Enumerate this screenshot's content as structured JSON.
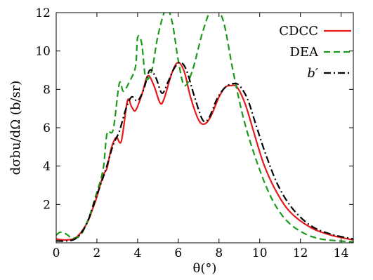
{
  "chart_data": {
    "type": "line",
    "xlabel": "θ(°)",
    "ylabel": "dσbu/dΩ (b/sr)",
    "xlim": [
      0,
      14.6
    ],
    "ylim": [
      0,
      12
    ],
    "x_ticks": [
      0,
      2,
      4,
      6,
      8,
      10,
      12,
      14
    ],
    "y_ticks": [
      2,
      4,
      6,
      8,
      10,
      12
    ],
    "grid": false,
    "legend_position": "top-right",
    "series": [
      {
        "name": "CDCC",
        "color": "#e41a1c",
        "style": "solid",
        "points": [
          [
            0,
            0.2
          ],
          [
            0.5,
            0.15
          ],
          [
            1.0,
            0.3
          ],
          [
            1.5,
            1.0
          ],
          [
            1.8,
            1.8
          ],
          [
            2.0,
            2.4
          ],
          [
            2.3,
            3.5
          ],
          [
            2.5,
            3.9
          ],
          [
            2.7,
            4.9
          ],
          [
            2.95,
            5.5
          ],
          [
            3.2,
            5.3
          ],
          [
            3.5,
            7.4
          ],
          [
            3.7,
            7.1
          ],
          [
            3.9,
            6.9
          ],
          [
            4.2,
            7.7
          ],
          [
            4.5,
            8.7
          ],
          [
            4.8,
            8.2
          ],
          [
            5.1,
            7.3
          ],
          [
            5.3,
            7.5
          ],
          [
            5.7,
            8.9
          ],
          [
            6.0,
            9.4
          ],
          [
            6.3,
            8.9
          ],
          [
            6.6,
            7.6
          ],
          [
            7.0,
            6.4
          ],
          [
            7.3,
            6.2
          ],
          [
            7.6,
            6.6
          ],
          [
            8.0,
            7.6
          ],
          [
            8.3,
            8.1
          ],
          [
            8.6,
            8.2
          ],
          [
            8.9,
            8.1
          ],
          [
            9.3,
            7.2
          ],
          [
            9.7,
            5.8
          ],
          [
            10.2,
            4.1
          ],
          [
            10.8,
            2.7
          ],
          [
            11.5,
            1.6
          ],
          [
            12.5,
            0.8
          ],
          [
            13.5,
            0.4
          ],
          [
            14.6,
            0.15
          ]
        ]
      },
      {
        "name": "DEA",
        "color": "#1a9a1a",
        "style": "dashed",
        "points": [
          [
            0,
            0.4
          ],
          [
            0.2,
            0.55
          ],
          [
            0.5,
            0.45
          ],
          [
            0.8,
            0.25
          ],
          [
            1.2,
            0.4
          ],
          [
            1.6,
            1.3
          ],
          [
            1.9,
            2.3
          ],
          [
            2.3,
            3.8
          ],
          [
            2.5,
            5.7
          ],
          [
            2.8,
            5.9
          ],
          [
            3.1,
            8.3
          ],
          [
            3.3,
            7.9
          ],
          [
            3.6,
            8.4
          ],
          [
            3.9,
            9.2
          ],
          [
            4.0,
            10.7
          ],
          [
            4.2,
            10.4
          ],
          [
            4.4,
            8.6
          ],
          [
            4.7,
            9.0
          ],
          [
            5.0,
            10.8
          ],
          [
            5.4,
            12.2
          ],
          [
            5.7,
            11.5
          ],
          [
            6.0,
            9.5
          ],
          [
            6.3,
            8.2
          ],
          [
            6.7,
            9.0
          ],
          [
            7.2,
            11.0
          ],
          [
            7.7,
            12.3
          ],
          [
            8.2,
            11.6
          ],
          [
            8.7,
            8.9
          ],
          [
            9.2,
            6.5
          ],
          [
            9.8,
            4.4
          ],
          [
            10.5,
            2.5
          ],
          [
            11.2,
            1.3
          ],
          [
            12.0,
            0.6
          ],
          [
            13.0,
            0.2
          ],
          [
            14.6,
            0.05
          ]
        ]
      },
      {
        "name": "b′",
        "color": "#000000",
        "style": "dashdot",
        "points": [
          [
            0,
            0.1
          ],
          [
            0.5,
            0.1
          ],
          [
            1.0,
            0.25
          ],
          [
            1.5,
            1.0
          ],
          [
            2.0,
            2.5
          ],
          [
            2.4,
            3.7
          ],
          [
            2.8,
            5.1
          ],
          [
            3.1,
            5.8
          ],
          [
            3.4,
            6.9
          ],
          [
            3.7,
            7.6
          ],
          [
            4.0,
            7.4
          ],
          [
            4.3,
            8.0
          ],
          [
            4.6,
            9.0
          ],
          [
            4.9,
            8.6
          ],
          [
            5.2,
            7.8
          ],
          [
            5.5,
            8.4
          ],
          [
            5.8,
            9.1
          ],
          [
            6.1,
            9.4
          ],
          [
            6.4,
            9.0
          ],
          [
            6.8,
            7.6
          ],
          [
            7.2,
            6.4
          ],
          [
            7.5,
            6.5
          ],
          [
            7.9,
            7.5
          ],
          [
            8.3,
            8.1
          ],
          [
            8.7,
            8.3
          ],
          [
            9.0,
            8.2
          ],
          [
            9.4,
            7.5
          ],
          [
            9.8,
            6.2
          ],
          [
            10.3,
            4.6
          ],
          [
            10.9,
            3.0
          ],
          [
            11.6,
            1.8
          ],
          [
            12.5,
            0.9
          ],
          [
            13.5,
            0.45
          ],
          [
            14.6,
            0.2
          ]
        ]
      }
    ]
  }
}
